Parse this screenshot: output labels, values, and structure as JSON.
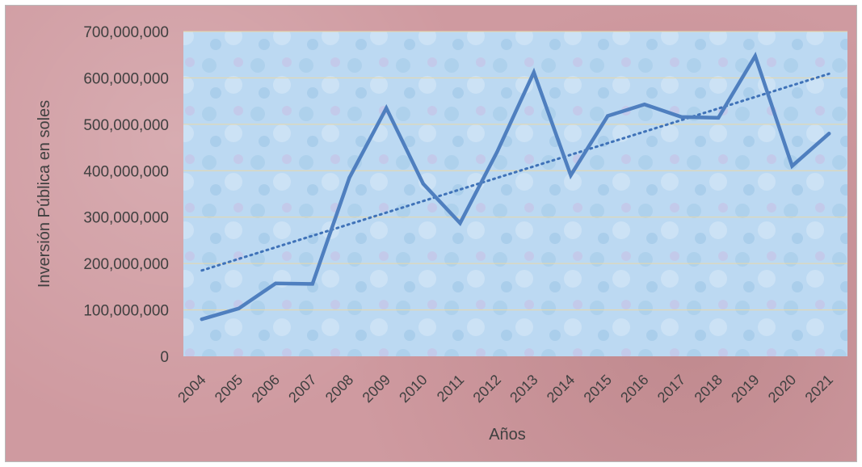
{
  "colors": {
    "outer_background": "#cf9aa0",
    "plot_background": "#b9d8f2",
    "series_line": "#4f7fbf",
    "trendline": "#3f72b8",
    "gridline": "#e8d8a8",
    "text": "#404040"
  },
  "chart_data": {
    "type": "line",
    "title": "",
    "xlabel": "Años",
    "ylabel": "Inversión Pública en soles",
    "categories": [
      "2004",
      "2005",
      "2006",
      "2007",
      "2008",
      "2009",
      "2010",
      "2011",
      "2012",
      "2013",
      "2014",
      "2015",
      "2016",
      "2017",
      "2018",
      "2019",
      "2020",
      "2021"
    ],
    "series": [
      {
        "values": [
          80000000,
          103000000,
          157000000,
          156000000,
          385000000,
          535000000,
          372000000,
          287000000,
          440000000,
          612000000,
          390000000,
          518000000,
          543000000,
          516000000,
          514000000,
          647000000,
          410000000,
          480000000
        ]
      }
    ],
    "trendline": {
      "type": "linear",
      "style": "dotted"
    },
    "ylim": [
      0,
      700000000
    ],
    "yticks": [
      0,
      100000000,
      200000000,
      300000000,
      400000000,
      500000000,
      600000000,
      700000000
    ],
    "ytick_labels": [
      "0",
      "100,000,000",
      "200,000,000",
      "300,000,000",
      "400,000,000",
      "500,000,000",
      "600,000,000",
      "700,000,000"
    ],
    "grid": true,
    "legend": "none"
  }
}
